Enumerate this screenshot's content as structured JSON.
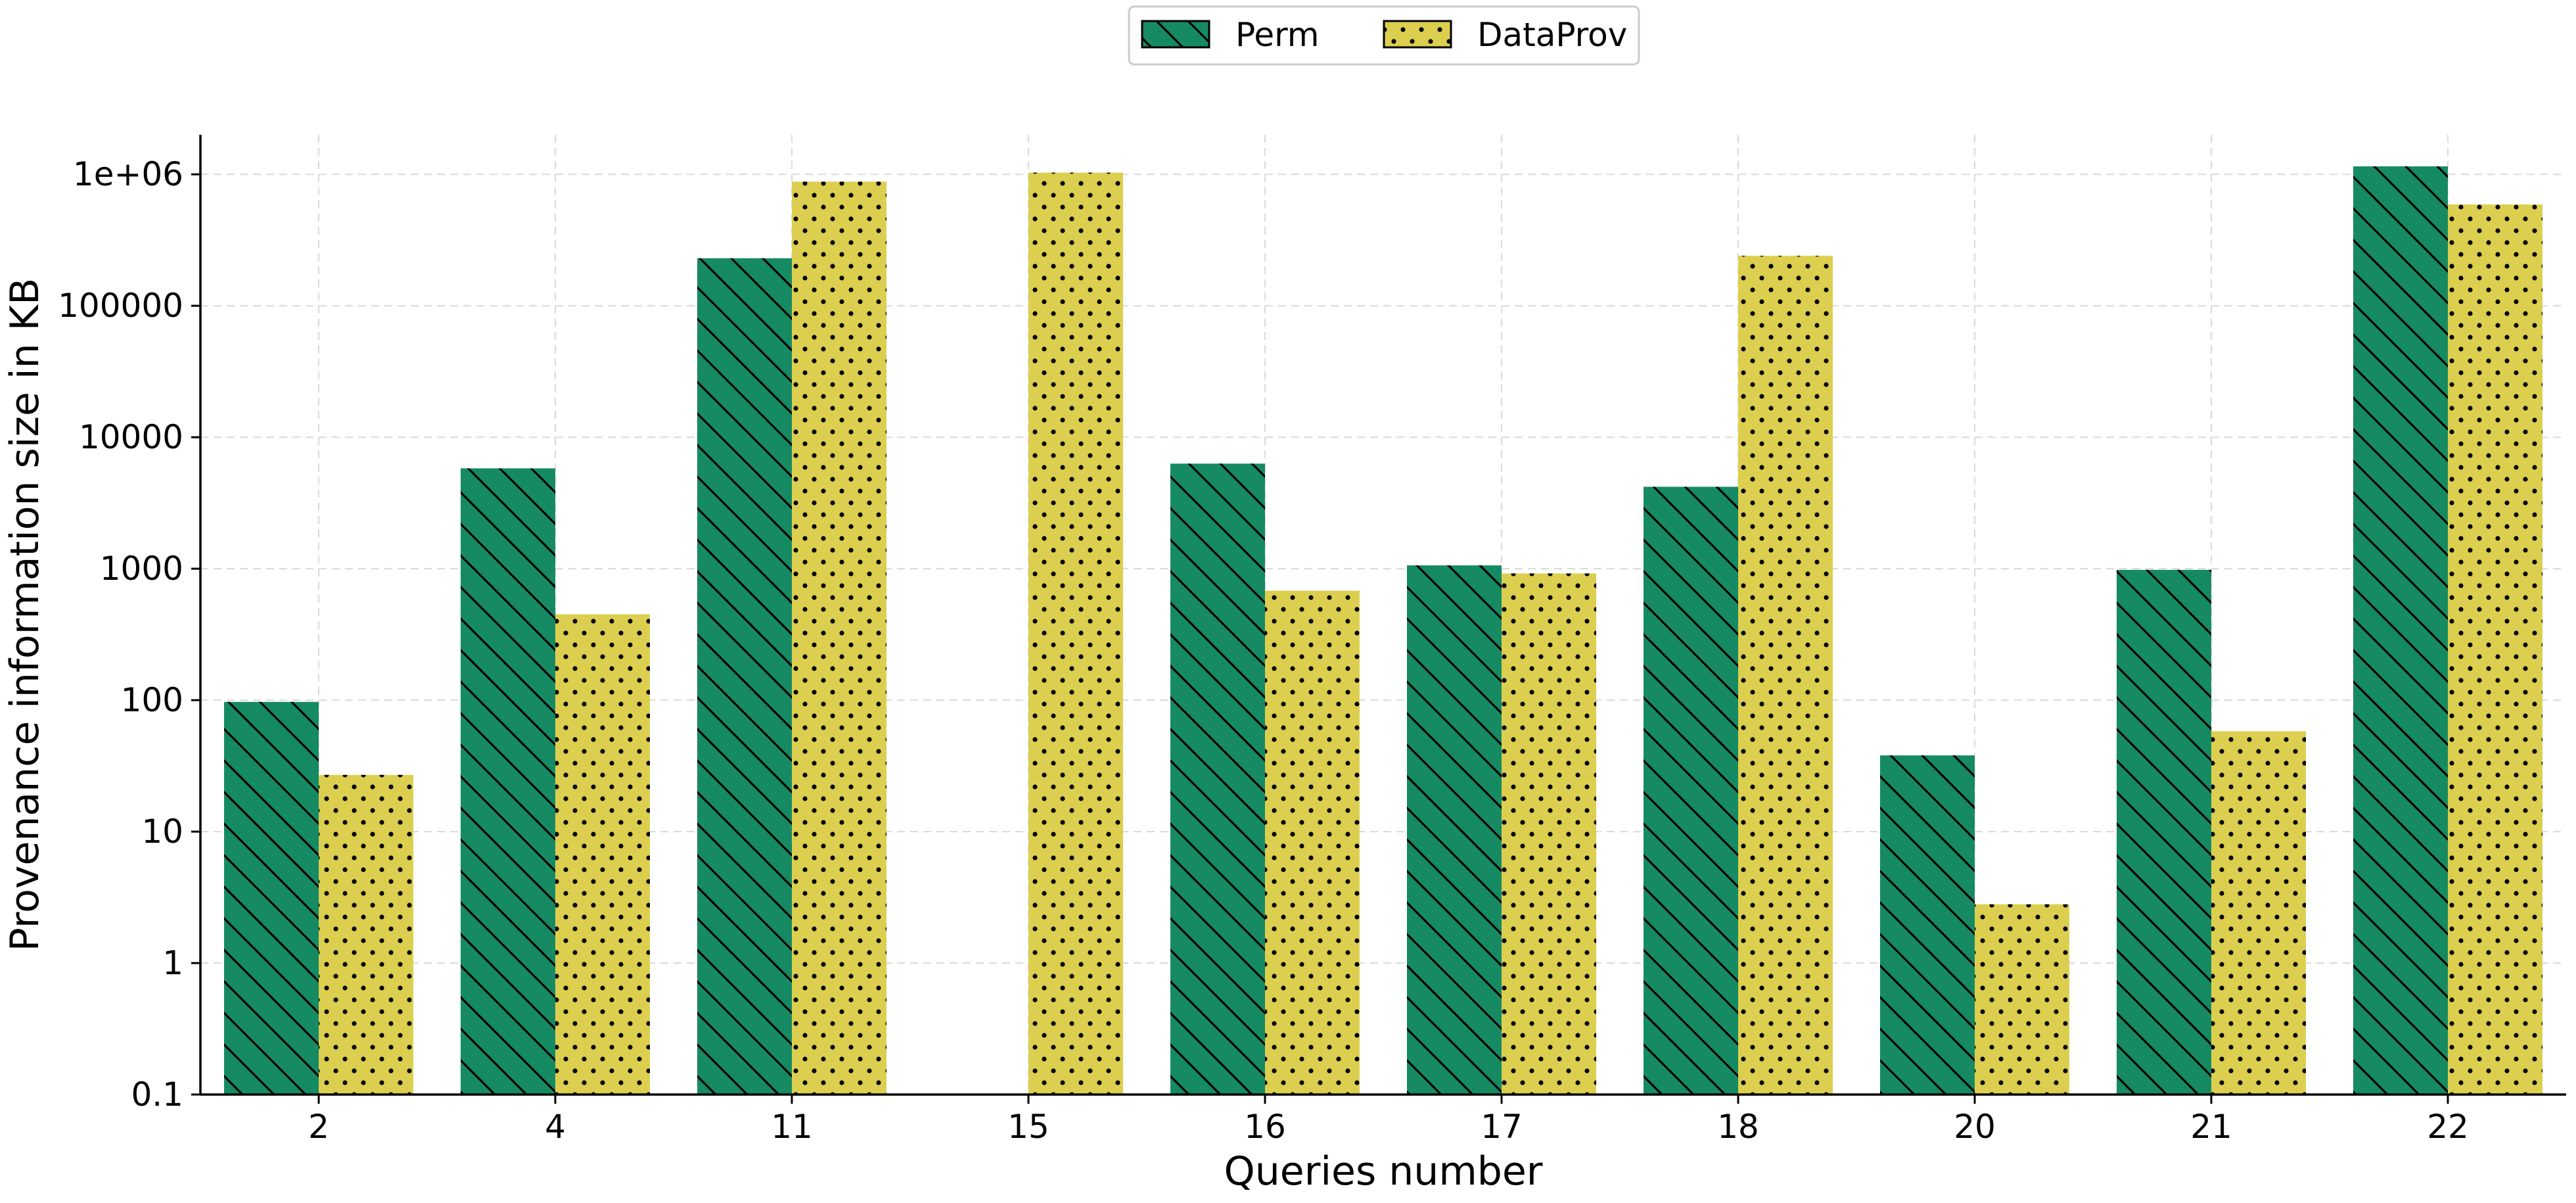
{
  "chart_data": {
    "type": "bar",
    "title": "",
    "xlabel": "Queries number",
    "ylabel": "Provenance information size in KB",
    "yscale": "log",
    "ylim": [
      0.1,
      2000000
    ],
    "yticks": [
      0.1,
      1,
      10,
      100,
      1000,
      10000,
      100000,
      1000000
    ],
    "ytick_labels": [
      "0.1",
      "1",
      "10",
      "100",
      "1000",
      "10000",
      "100000",
      "1e+06"
    ],
    "grid": true,
    "legend_position": "top-center",
    "categories": [
      "2",
      "4",
      "11",
      "15",
      "16",
      "17",
      "18",
      "20",
      "21",
      "22"
    ],
    "series": [
      {
        "name": "Perm",
        "color": "#168a63",
        "pattern": "diagonal-hatch",
        "values": [
          97,
          5800,
          230000,
          null,
          6300,
          1060,
          4200,
          38,
          980,
          1150000
        ]
      },
      {
        "name": "DataProv",
        "color": "#dccf4f",
        "pattern": "dots",
        "values": [
          27,
          450,
          880000,
          1030000,
          680,
          920,
          240000,
          2.8,
          58,
          590000
        ]
      }
    ]
  }
}
